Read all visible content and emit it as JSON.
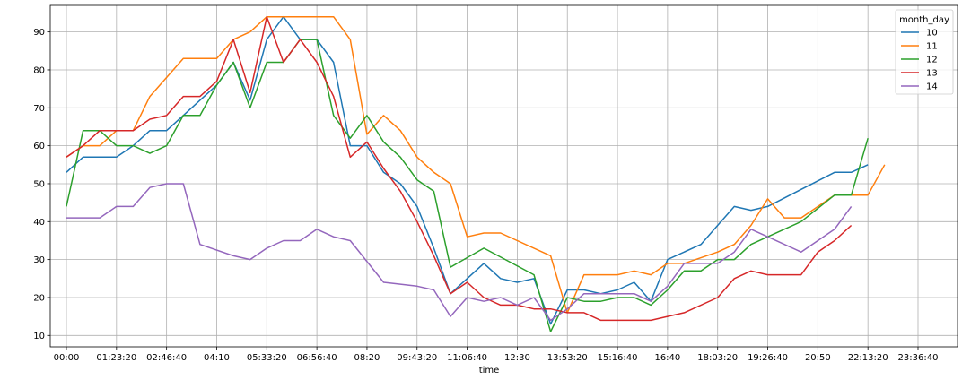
{
  "chart_data": {
    "type": "line",
    "title": "",
    "xlabel": "time",
    "ylabel": "",
    "ylim": [
      7,
      97
    ],
    "yticks": [
      10,
      20,
      30,
      40,
      50,
      60,
      70,
      80,
      90
    ],
    "grid": true,
    "legend": {
      "title": "month_day",
      "placement": "top-right"
    },
    "xticks": [
      {
        "index": 0,
        "label": "00:00"
      },
      {
        "index": 3,
        "label": "01:23:20"
      },
      {
        "index": 6,
        "label": "02:46:40"
      },
      {
        "index": 9,
        "label": "04:10"
      },
      {
        "index": 12,
        "label": "05:33:20"
      },
      {
        "index": 15,
        "label": "06:56:40"
      },
      {
        "index": 18,
        "label": "08:20"
      },
      {
        "index": 21,
        "label": "09:43:20"
      },
      {
        "index": 24,
        "label": "11:06:40"
      },
      {
        "index": 27,
        "label": "12:30"
      },
      {
        "index": 30,
        "label": "13:53:20"
      },
      {
        "index": 33,
        "label": "15:16:40"
      },
      {
        "index": 36,
        "label": "16:40"
      },
      {
        "index": 39,
        "label": "18:03:20"
      },
      {
        "index": 42,
        "label": "19:26:40"
      },
      {
        "index": 45,
        "label": "20:50"
      },
      {
        "index": 48,
        "label": "22:13:20"
      },
      {
        "index": 51,
        "label": "23:36:40"
      }
    ],
    "series": [
      {
        "name": "10",
        "color": "#1f77b4",
        "points": [
          [
            0,
            53
          ],
          [
            1,
            57
          ],
          [
            3,
            57
          ],
          [
            4,
            60
          ],
          [
            5,
            64
          ],
          [
            6,
            64
          ],
          [
            7,
            68
          ],
          [
            8,
            72
          ],
          [
            9,
            76
          ],
          [
            10,
            82
          ],
          [
            11,
            72
          ],
          [
            12,
            88
          ],
          [
            13,
            94
          ],
          [
            14,
            88
          ],
          [
            15,
            88
          ],
          [
            16,
            82
          ],
          [
            17,
            60
          ],
          [
            18,
            60
          ],
          [
            19,
            53
          ],
          [
            20,
            50
          ],
          [
            21,
            44
          ],
          [
            22,
            33
          ],
          [
            23,
            21
          ],
          [
            24,
            25
          ],
          [
            25,
            29
          ],
          [
            26,
            25
          ],
          [
            27,
            24
          ],
          [
            28,
            25
          ],
          [
            29,
            13
          ],
          [
            30,
            22
          ],
          [
            31,
            22
          ],
          [
            32,
            21
          ],
          [
            33,
            22
          ],
          [
            34,
            24
          ],
          [
            35,
            19
          ],
          [
            36,
            30
          ],
          [
            38,
            34
          ],
          [
            39,
            39
          ],
          [
            40,
            44
          ],
          [
            41,
            43
          ],
          [
            42,
            44
          ],
          [
            46,
            53
          ],
          [
            47,
            53
          ],
          [
            48,
            55
          ]
        ]
      },
      {
        "name": "11",
        "color": "#ff7f0e",
        "points": [
          [
            0,
            57
          ],
          [
            1,
            60
          ],
          [
            2,
            60
          ],
          [
            3,
            64
          ],
          [
            4,
            64
          ],
          [
            5,
            73
          ],
          [
            7,
            83
          ],
          [
            9,
            83
          ],
          [
            10,
            88
          ],
          [
            11,
            90
          ],
          [
            12,
            94
          ],
          [
            13,
            94
          ],
          [
            16,
            94
          ],
          [
            17,
            88
          ],
          [
            18,
            63
          ],
          [
            19,
            68
          ],
          [
            20,
            64
          ],
          [
            21,
            57
          ],
          [
            22,
            53
          ],
          [
            23,
            50
          ],
          [
            24,
            36
          ],
          [
            25,
            37
          ],
          [
            26,
            37
          ],
          [
            29,
            31
          ],
          [
            30,
            16
          ],
          [
            31,
            26
          ],
          [
            32,
            26
          ],
          [
            33,
            26
          ],
          [
            34,
            27
          ],
          [
            35,
            26
          ],
          [
            36,
            29
          ],
          [
            37,
            29
          ],
          [
            39,
            32
          ],
          [
            40,
            34
          ],
          [
            41,
            39
          ],
          [
            42,
            46
          ],
          [
            43,
            41
          ],
          [
            44,
            41
          ],
          [
            46,
            47
          ],
          [
            47,
            47
          ],
          [
            48,
            47
          ],
          [
            49,
            55
          ]
        ]
      },
      {
        "name": "12",
        "color": "#2ca02c",
        "points": [
          [
            0,
            44
          ],
          [
            1,
            64
          ],
          [
            2,
            64
          ],
          [
            3,
            60
          ],
          [
            4,
            60
          ],
          [
            5,
            58
          ],
          [
            6,
            60
          ],
          [
            7,
            68
          ],
          [
            8,
            68
          ],
          [
            9,
            76
          ],
          [
            10,
            82
          ],
          [
            11,
            70
          ],
          [
            12,
            82
          ],
          [
            13,
            82
          ],
          [
            14,
            88
          ],
          [
            15,
            88
          ],
          [
            16,
            68
          ],
          [
            17,
            62
          ],
          [
            18,
            68
          ],
          [
            19,
            61
          ],
          [
            20,
            57
          ],
          [
            21,
            51
          ],
          [
            22,
            48
          ],
          [
            23,
            28
          ],
          [
            25,
            33
          ],
          [
            28,
            26
          ],
          [
            29,
            11
          ],
          [
            30,
            20
          ],
          [
            31,
            19
          ],
          [
            32,
            19
          ],
          [
            33,
            20
          ],
          [
            34,
            20
          ],
          [
            35,
            18
          ],
          [
            36,
            22
          ],
          [
            37,
            27
          ],
          [
            38,
            27
          ],
          [
            39,
            30
          ],
          [
            40,
            30
          ],
          [
            41,
            34
          ],
          [
            42,
            36
          ],
          [
            44,
            40
          ],
          [
            46,
            47
          ],
          [
            47,
            47
          ],
          [
            48,
            62
          ]
        ]
      },
      {
        "name": "13",
        "color": "#d62728",
        "points": [
          [
            0,
            57
          ],
          [
            1,
            60
          ],
          [
            2,
            64
          ],
          [
            3,
            64
          ],
          [
            4,
            64
          ],
          [
            5,
            67
          ],
          [
            6,
            68
          ],
          [
            7,
            73
          ],
          [
            8,
            73
          ],
          [
            9,
            77
          ],
          [
            10,
            88
          ],
          [
            11,
            74
          ],
          [
            12,
            94
          ],
          [
            13,
            82
          ],
          [
            14,
            88
          ],
          [
            15,
            82
          ],
          [
            16,
            73
          ],
          [
            17,
            57
          ],
          [
            18,
            61
          ],
          [
            19,
            54
          ],
          [
            20,
            48
          ],
          [
            21,
            40
          ],
          [
            22,
            31
          ],
          [
            23,
            21
          ],
          [
            24,
            24
          ],
          [
            25,
            20
          ],
          [
            26,
            18
          ],
          [
            27,
            18
          ],
          [
            28,
            17
          ],
          [
            29,
            17
          ],
          [
            30,
            16
          ],
          [
            31,
            16
          ],
          [
            32,
            14
          ],
          [
            33,
            14
          ],
          [
            34,
            14
          ],
          [
            35,
            14
          ],
          [
            36,
            15
          ],
          [
            37,
            16
          ],
          [
            39,
            20
          ],
          [
            40,
            25
          ],
          [
            41,
            27
          ],
          [
            42,
            26
          ],
          [
            43,
            26
          ],
          [
            44,
            26
          ],
          [
            45,
            32
          ],
          [
            46,
            35
          ],
          [
            47,
            39
          ]
        ]
      },
      {
        "name": "14",
        "color": "#9467bd",
        "points": [
          [
            0,
            41
          ],
          [
            1,
            41
          ],
          [
            2,
            41
          ],
          [
            3,
            44
          ],
          [
            4,
            44
          ],
          [
            5,
            49
          ],
          [
            6,
            50
          ],
          [
            7,
            50
          ],
          [
            8,
            34
          ],
          [
            10,
            31
          ],
          [
            11,
            30
          ],
          [
            12,
            33
          ],
          [
            13,
            35
          ],
          [
            14,
            35
          ],
          [
            15,
            38
          ],
          [
            16,
            36
          ],
          [
            17,
            35
          ],
          [
            19,
            24
          ],
          [
            21,
            23
          ],
          [
            22,
            22
          ],
          [
            23,
            15
          ],
          [
            24,
            20
          ],
          [
            25,
            19
          ],
          [
            26,
            20
          ],
          [
            27,
            18
          ],
          [
            28,
            20
          ],
          [
            29,
            14
          ],
          [
            30,
            17
          ],
          [
            31,
            21
          ],
          [
            32,
            21
          ],
          [
            33,
            21
          ],
          [
            34,
            21
          ],
          [
            35,
            19
          ],
          [
            36,
            23
          ],
          [
            37,
            29
          ],
          [
            38,
            29
          ],
          [
            39,
            29
          ],
          [
            40,
            32
          ],
          [
            41,
            38
          ],
          [
            42,
            36
          ],
          [
            44,
            32
          ],
          [
            46,
            38
          ],
          [
            47,
            44
          ]
        ]
      }
    ]
  }
}
